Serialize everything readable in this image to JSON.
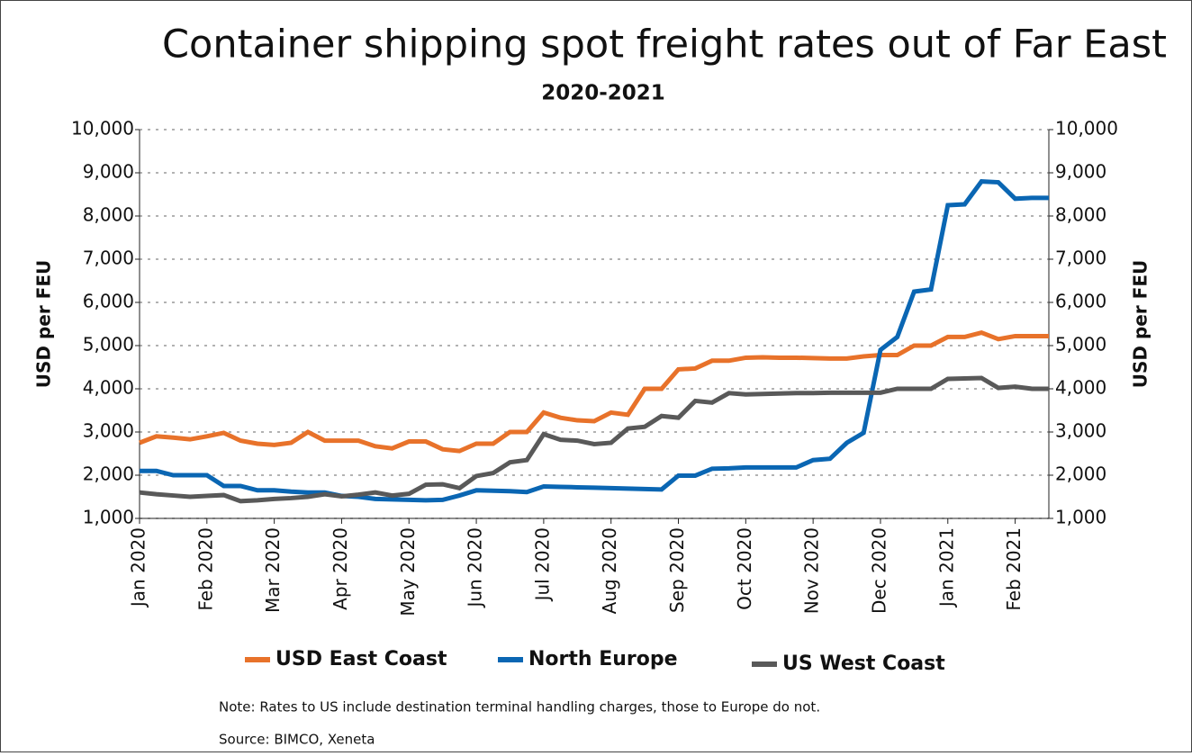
{
  "chart_data": {
    "type": "line",
    "title": "Container shipping spot freight rates out of Far East",
    "subtitle": "2020-2021",
    "y_label": "USD per FEU",
    "y2_label": "USD per FEU",
    "categories": [
      "Jan 2020",
      null,
      null,
      null,
      "Feb 2020",
      null,
      null,
      null,
      "Mar 2020",
      null,
      null,
      null,
      "Apr 2020",
      null,
      null,
      null,
      "May 2020",
      null,
      null,
      null,
      "Jun 2020",
      null,
      null,
      null,
      "Jul 2020",
      null,
      null,
      null,
      "Aug 2020",
      null,
      null,
      null,
      "Sep 2020",
      null,
      null,
      null,
      "Oct 2020",
      null,
      null,
      null,
      "Nov 2020",
      null,
      null,
      null,
      "Dec 2020",
      null,
      null,
      null,
      "Jan 2021",
      null,
      null,
      null,
      "Feb 2021",
      null,
      null
    ],
    "series": [
      {
        "name": "USD East Coast",
        "color": "#e8722a",
        "values": [
          2750,
          2900,
          2870,
          2830,
          2900,
          2980,
          2800,
          2730,
          2700,
          2750,
          3000,
          2800,
          2800,
          2800,
          2670,
          2620,
          2780,
          2780,
          2600,
          2560,
          2730,
          2730,
          3000,
          3000,
          3450,
          3330,
          3270,
          3250,
          3450,
          3400,
          4000,
          4000,
          4450,
          4470,
          4650,
          4650,
          4720,
          4730,
          4720,
          4720,
          4710,
          4700,
          4700,
          4750,
          4780,
          4780,
          5000,
          5000,
          5200,
          5200,
          5300,
          5150,
          5220,
          5220,
          5220
        ]
      },
      {
        "name": "North Europe",
        "color": "#0a66b3",
        "values": [
          2100,
          2100,
          2000,
          2000,
          2000,
          1750,
          1750,
          1650,
          1650,
          1620,
          1600,
          1600,
          1520,
          1500,
          1450,
          1440,
          1430,
          1420,
          1430,
          1530,
          1650,
          1640,
          1630,
          1610,
          1740,
          1730,
          1720,
          1710,
          1700,
          1690,
          1680,
          1670,
          1990,
          1990,
          2150,
          2160,
          2180,
          2180,
          2180,
          2180,
          2350,
          2380,
          2750,
          2980,
          4900,
          5200,
          6250,
          6300,
          8250,
          8270,
          8800,
          8780,
          8400,
          8420,
          8420
        ]
      },
      {
        "name": "US West Coast",
        "color": "#595959",
        "values": [
          1600,
          1560,
          1530,
          1500,
          1520,
          1540,
          1400,
          1420,
          1450,
          1470,
          1500,
          1560,
          1510,
          1550,
          1600,
          1530,
          1570,
          1780,
          1790,
          1700,
          1980,
          2050,
          2300,
          2350,
          2950,
          2820,
          2800,
          2720,
          2750,
          3080,
          3120,
          3370,
          3330,
          3720,
          3680,
          3900,
          3870,
          3880,
          3890,
          3900,
          3900,
          3910,
          3910,
          3910,
          3910,
          4000,
          4000,
          4000,
          4230,
          4240,
          4250,
          4020,
          4050,
          4000,
          4000
        ]
      }
    ],
    "ylim": [
      1000,
      10000
    ],
    "yticks": [
      {
        "value": 1000,
        "label": "1,000"
      },
      {
        "value": 2000,
        "label": "2,000"
      },
      {
        "value": 3000,
        "label": "3,000"
      },
      {
        "value": 4000,
        "label": "4,000"
      },
      {
        "value": 5000,
        "label": "5,000"
      },
      {
        "value": 6000,
        "label": "6,000"
      },
      {
        "value": 7000,
        "label": "7,000"
      },
      {
        "value": 8000,
        "label": "8,000"
      },
      {
        "value": 9000,
        "label": "9,000"
      },
      {
        "value": 10000,
        "label": "10,000"
      }
    ],
    "y2lim": [
      1000,
      10000
    ],
    "y2ticks": [
      {
        "value": 1000,
        "label": "1,000"
      },
      {
        "value": 2000,
        "label": "2,000"
      },
      {
        "value": 3000,
        "label": "3,000"
      },
      {
        "value": 4000,
        "label": "4,000"
      },
      {
        "value": 5000,
        "label": "5,000"
      },
      {
        "value": 6000,
        "label": "6,000"
      },
      {
        "value": 7000,
        "label": "7,000"
      },
      {
        "value": 8000,
        "label": "8,000"
      },
      {
        "value": 9000,
        "label": "9,000"
      },
      {
        "value": 10000,
        "label": "10,000"
      }
    ],
    "grid": true,
    "legend": "bottom",
    "notes": [
      "Note: Rates to US include destination terminal handling charges, those to Europe do not.",
      "Source: BIMCO, Xeneta"
    ]
  }
}
